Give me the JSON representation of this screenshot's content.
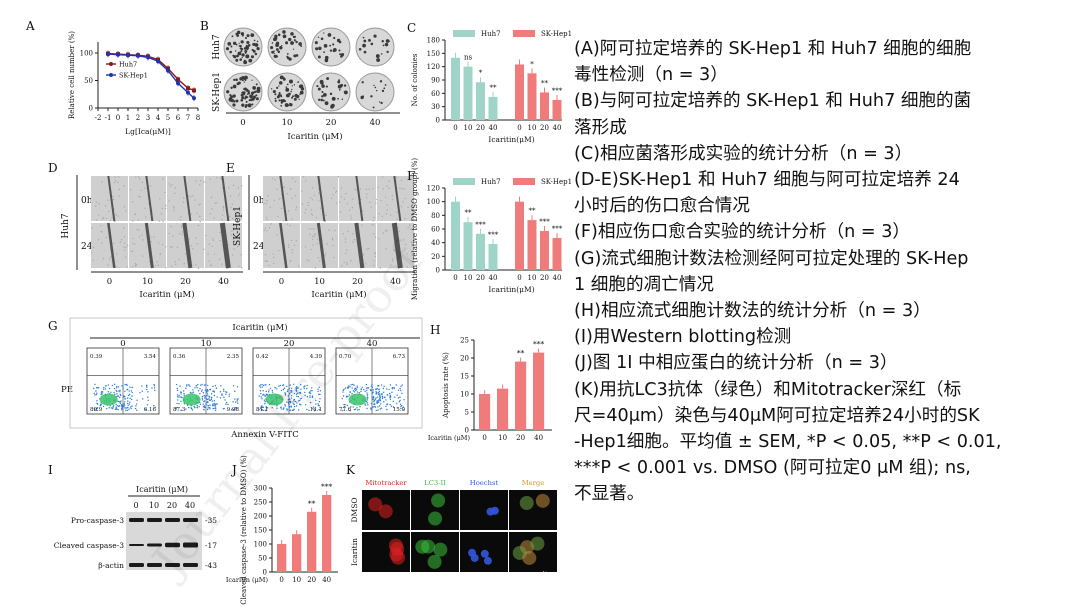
{
  "panels": {
    "A": {
      "letter": "A",
      "ylabel": "Relative cell number (%)",
      "xlabel": "Lg[Ica(μM)]",
      "xticks": [
        "-2",
        "-1",
        "0",
        "1",
        "2",
        "3",
        "4",
        "5",
        "6",
        "7",
        "8"
      ],
      "yticks": [
        "0",
        "50",
        "100"
      ],
      "legend": [
        "Huh7",
        "SK-Hep1"
      ],
      "colors": {
        "Huh7": "#8b1a1a",
        "SK-Hep1": "#2233aa"
      }
    },
    "B": {
      "letter": "B",
      "row_labels": [
        "Huh7",
        "SK-Hep1"
      ],
      "conc": [
        "0",
        "10",
        "20",
        "40"
      ],
      "xlabel": "Icaritin (μM)"
    },
    "C": {
      "letter": "C",
      "ylabel": "No. of colonies",
      "xlabel": "Icaritin(μM)",
      "legend": [
        "Huh7",
        "SK-Hep1"
      ],
      "annot": {
        "Huh7": [
          "",
          "ns",
          "*",
          "**"
        ],
        "SK-Hep1": [
          "",
          "*",
          "**",
          "***"
        ]
      }
    },
    "D": {
      "letter": "D",
      "side_label": "Huh7",
      "times": [
        "0h",
        "24h"
      ],
      "conc": [
        "0",
        "10",
        "20",
        "40"
      ],
      "xlabel": "Icaritin (μM)"
    },
    "E": {
      "letter": "E",
      "side_label": "SK-Hep1",
      "times": [
        "0h",
        "24h"
      ],
      "conc": [
        "0",
        "10",
        "20",
        "40"
      ],
      "xlabel": "Icaritin (μM)"
    },
    "F": {
      "letter": "F",
      "ylabel": "Migration (relative to DMSO group) (%)",
      "xlabel": "Icaritin(μM)",
      "legend": [
        "Huh7",
        "SK-Hep1"
      ],
      "annot": {
        "Huh7": [
          "",
          "**",
          "***",
          "***"
        ],
        "SK-Hep1": [
          "",
          "**",
          "***",
          "***"
        ]
      }
    },
    "G": {
      "letter": "G",
      "title": "Icaritin (μM)",
      "conc": [
        "0",
        "10",
        "20",
        "40"
      ],
      "ylabel": "PE",
      "xlabel": "Annexin V-FITC",
      "quadrants": [
        {
          "ul": "0.39",
          "ur": "3.54",
          "ll": "89.9",
          "lr": "6.16"
        },
        {
          "ul": "0.36",
          "ur": "2.35",
          "ll": "87.3",
          "lr": "9.98"
        },
        {
          "ul": "0.42",
          "ur": "4.39",
          "ll": "81.1",
          "lr": "14.1"
        },
        {
          "ul": "0.70",
          "ur": "6.73",
          "ll": "77.6",
          "lr": "15.0"
        }
      ]
    },
    "H": {
      "letter": "H",
      "ylabel": "Apoptosis rate (%)",
      "xlabel": "Icaritin (μM)",
      "annot": [
        "",
        "",
        "**",
        "***"
      ]
    },
    "I": {
      "letter": "I",
      "title": "Icaritin (μM)",
      "conc": [
        "0",
        "10",
        "20",
        "40"
      ],
      "rows": [
        "Pro-caspase-3",
        "Cleaved caspase-3",
        "β-actin"
      ],
      "mw": [
        "35",
        "17",
        "43"
      ]
    },
    "J": {
      "letter": "J",
      "ylabel": "Cleaved caspase-3 (relative to DMSO) (%)",
      "xlabel": "Icaritin (μM)",
      "annot": [
        "",
        "",
        "**",
        "***"
      ]
    },
    "K": {
      "letter": "K",
      "cols": [
        "Mitotracker",
        "LC3-II",
        "Hoechst",
        "Merge"
      ],
      "rows": [
        "DMSO",
        "Icaritin"
      ],
      "scale": "40 μm"
    }
  },
  "chart_data": [
    {
      "panel": "A",
      "type": "line",
      "xlabel": "Lg[Ica(μM)]",
      "ylabel": "Relative cell number (%)",
      "xlim": [
        -2,
        8
      ],
      "ylim": [
        0,
        120
      ],
      "series": [
        {
          "name": "Huh7",
          "x": [
            -1,
            0,
            1,
            2,
            3,
            4,
            5,
            6,
            7,
            7.6
          ],
          "y": [
            99,
            98,
            97,
            96,
            94,
            88,
            72,
            52,
            36,
            32
          ]
        },
        {
          "name": "SK-Hep1",
          "x": [
            -1,
            0,
            1,
            2,
            3,
            4,
            5,
            6,
            7,
            7.6
          ],
          "y": [
            98,
            97,
            96,
            95,
            92,
            85,
            68,
            45,
            28,
            18
          ]
        }
      ]
    },
    {
      "panel": "C",
      "type": "bar",
      "categories": [
        "0",
        "10",
        "20",
        "40"
      ],
      "xlabel": "Icaritin(μM)",
      "ylabel": "No. of colonies",
      "ylim": [
        0,
        180
      ],
      "series": [
        {
          "name": "Huh7",
          "values": [
            140,
            120,
            85,
            52
          ]
        },
        {
          "name": "SK-Hep1",
          "values": [
            125,
            105,
            62,
            45
          ]
        }
      ]
    },
    {
      "panel": "F",
      "type": "bar",
      "categories": [
        "0",
        "10",
        "20",
        "40"
      ],
      "xlabel": "Icaritin(μM)",
      "ylabel": "Migration (relative to DMSO group) (%)",
      "ylim": [
        0,
        120
      ],
      "series": [
        {
          "name": "Huh7",
          "values": [
            100,
            70,
            53,
            38
          ]
        },
        {
          "name": "SK-Hep1",
          "values": [
            100,
            73,
            57,
            47
          ]
        }
      ]
    },
    {
      "panel": "H",
      "type": "bar",
      "categories": [
        "0",
        "10",
        "20",
        "40"
      ],
      "xlabel": "Icaritin (μM)",
      "ylabel": "Apoptosis rate (%)",
      "ylim": [
        0,
        25
      ],
      "series": [
        {
          "values": [
            10,
            11.5,
            19,
            21.5
          ]
        }
      ]
    },
    {
      "panel": "J",
      "type": "bar",
      "categories": [
        "0",
        "10",
        "20",
        "40"
      ],
      "xlabel": "Icaritin (μM)",
      "ylabel": "Cleaved caspase-3 (relative to DMSO) (%)",
      "ylim": [
        0,
        300
      ],
      "series": [
        {
          "values": [
            100,
            135,
            215,
            275
          ]
        }
      ]
    }
  ],
  "caption": [
    "(A)阿可拉定培养的 SK-Hep1 和 Huh7 细胞的细胞",
    "毒性检测（n = 3）",
    "(B)与阿可拉定培养的 SK-Hep1 和 Huh7 细胞的菌",
    "落形成",
    "(C)相应菌落形成实验的统计分析（n = 3）",
    "(D-E)SK-Hep1 和 Huh7 细胞与阿可拉定培养 24",
    "小时后的伤口愈合情况",
    "(F)相应伤口愈合实验的统计分析（n = 3）",
    "(G)流式细胞计数法检测经阿可拉定处理的 SK-Hep",
    "1 细胞的凋亡情况",
    "(H)相应流式细胞计数法的统计分析（n = 3）",
    "(I)用Western blotting检测",
    "(J)图 1I 中相应蛋白的统计分析（n = 3）",
    "(K)用抗LC3抗体（绿色）和Mitotracker深红（标",
    "尺=40μm）染色与40μM阿可拉定培养24小时的SK",
    "-Hep1细胞。平均值 ± SEM, *P < 0.05, **P < 0.01,",
    " ***P < 0.001 vs. DMSO (阿可拉定0 μM 组); ns,",
    "不显著。"
  ],
  "watermark": "Journal Pre-proof",
  "colors": {
    "huh7_bar": "#9fd5c8",
    "skhep_bar": "#f07b7b",
    "single_bar": "#f07b7b",
    "axis": "#222222"
  }
}
